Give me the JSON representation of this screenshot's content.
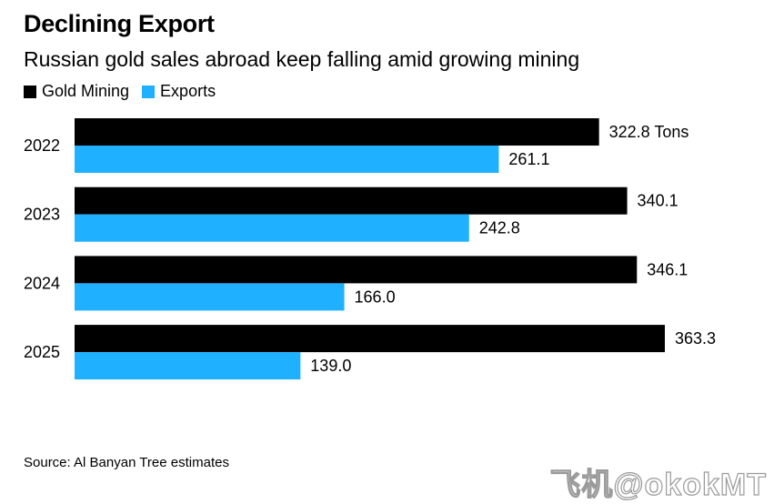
{
  "header": {
    "title": "Declining Export",
    "subtitle": "Russian gold sales abroad keep falling amid growing mining"
  },
  "legend": {
    "items": [
      {
        "label": "Gold Mining",
        "color": "#000000"
      },
      {
        "label": "Exports",
        "color": "#1fb1ff"
      }
    ]
  },
  "chart_data": {
    "type": "bar",
    "orientation": "horizontal",
    "title": "Declining Export",
    "subtitle": "Russian gold sales abroad keep falling amid growing mining",
    "categories": [
      "2022",
      "2023",
      "2024",
      "2025"
    ],
    "series": [
      {
        "name": "Gold Mining",
        "color": "#000000",
        "values": [
          322.8,
          340.1,
          346.1,
          363.3
        ],
        "labels": [
          "322.8 Tons",
          "340.1",
          "346.1",
          "363.3"
        ]
      },
      {
        "name": "Exports",
        "color": "#1fb1ff",
        "values": [
          261.1,
          242.8,
          166.0,
          139.0
        ],
        "labels": [
          "261.1",
          "242.8",
          "166.0",
          "139.0"
        ]
      }
    ],
    "xlim": [
      0,
      363.3
    ],
    "unit": "Tons",
    "legend_position": "top-left",
    "grid": false
  },
  "footer": {
    "source": "Source: Al Banyan Tree estimates",
    "watermark": "飞机@okokMT"
  }
}
